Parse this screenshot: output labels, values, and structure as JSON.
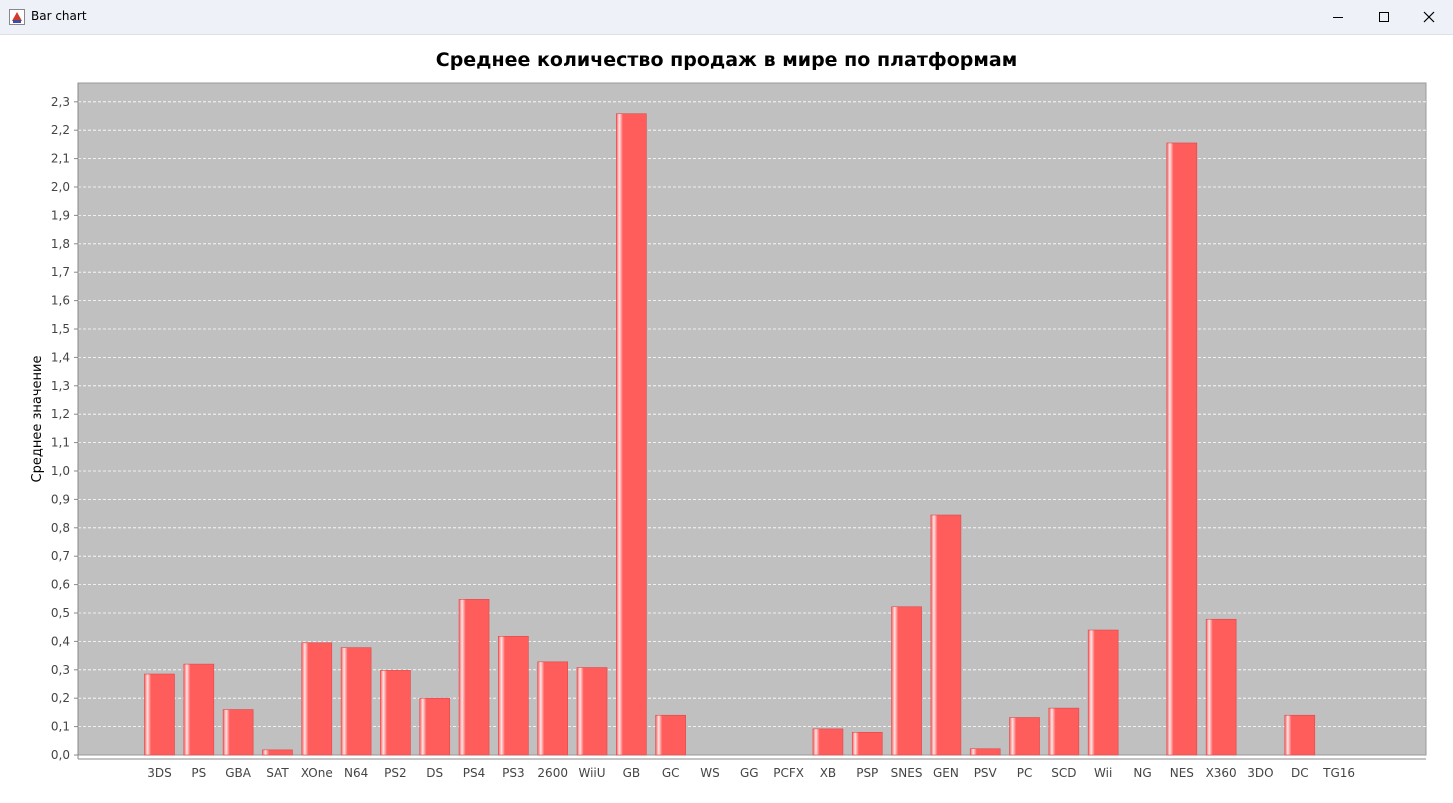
{
  "window": {
    "title": "Bar chart",
    "icons": {
      "app": "java-cup-icon",
      "minimize": "minimize-icon",
      "maximize": "maximize-icon",
      "close": "close-icon"
    }
  },
  "chart_data": {
    "type": "bar",
    "title": "Среднее количество продаж в мире по платформам",
    "xlabel": "",
    "ylabel": "Среднее значение",
    "ylim": [
      0,
      2.35
    ],
    "yticks": [
      "0,0",
      "0,1",
      "0,2",
      "0,3",
      "0,4",
      "0,5",
      "0,6",
      "0,7",
      "0,8",
      "0,9",
      "1,0",
      "1,1",
      "1,2",
      "1,3",
      "1,4",
      "1,5",
      "1,6",
      "1,7",
      "1,8",
      "1,9",
      "2,0",
      "2,1",
      "2,2",
      "2,3"
    ],
    "grid": true,
    "legend": "none",
    "bar_color": "#ff5c5c",
    "plot_background": "#c0c0c0",
    "categories": [
      "3DS",
      "PS",
      "GBA",
      "SAT",
      "XOne",
      "N64",
      "PS2",
      "DS",
      "PS4",
      "PS3",
      "2600",
      "WiiU",
      "GB",
      "GC",
      "WS",
      "GG",
      "PCFX",
      "XB",
      "PSP",
      "SNES",
      "GEN",
      "PSV",
      "PC",
      "SCD",
      "Wii",
      "NG",
      "NES",
      "X360",
      "3DO",
      "DC",
      "TG16"
    ],
    "values": [
      0.285,
      0.32,
      0.16,
      0.018,
      0.395,
      0.378,
      0.298,
      0.2,
      0.548,
      0.418,
      0.328,
      0.308,
      2.258,
      0.14,
      0,
      0,
      0,
      0.092,
      0.08,
      0.522,
      0.845,
      0.022,
      0.132,
      0.165,
      0.44,
      0,
      2.155,
      0.478,
      0,
      0.14,
      0
    ]
  }
}
